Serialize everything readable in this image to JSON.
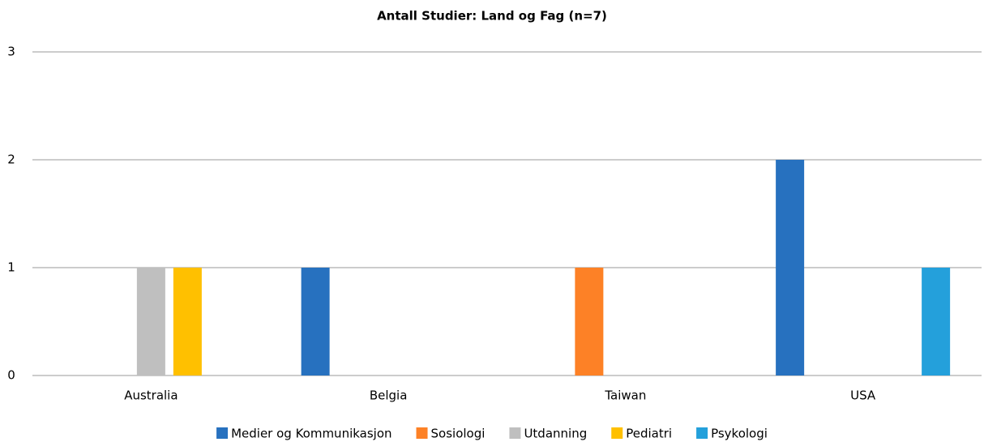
{
  "chart_data": {
    "type": "bar",
    "title": "Antall Studier: Land og Fag (n=7)",
    "categories": [
      "Australia",
      "Belgia",
      "Taiwan",
      "USA"
    ],
    "series": [
      {
        "name": "Medier og Kommunikasjon",
        "color": "#2771bf",
        "values": [
          0,
          1,
          0,
          2
        ]
      },
      {
        "name": "Sosiologi",
        "color": "#fd8126",
        "values": [
          0,
          0,
          1,
          0
        ]
      },
      {
        "name": "Utdanning",
        "color": "#bfbfbf",
        "values": [
          1,
          0,
          0,
          0
        ]
      },
      {
        "name": "Pediatri",
        "color": "#ffc000",
        "values": [
          1,
          0,
          0,
          0
        ]
      },
      {
        "name": "Psykologi",
        "color": "#24a0db",
        "values": [
          0,
          0,
          0,
          1
        ]
      }
    ],
    "ylim": [
      0,
      3
    ],
    "yticks": [
      0,
      1,
      2,
      3
    ],
    "grid": true,
    "legend": "bottom"
  }
}
